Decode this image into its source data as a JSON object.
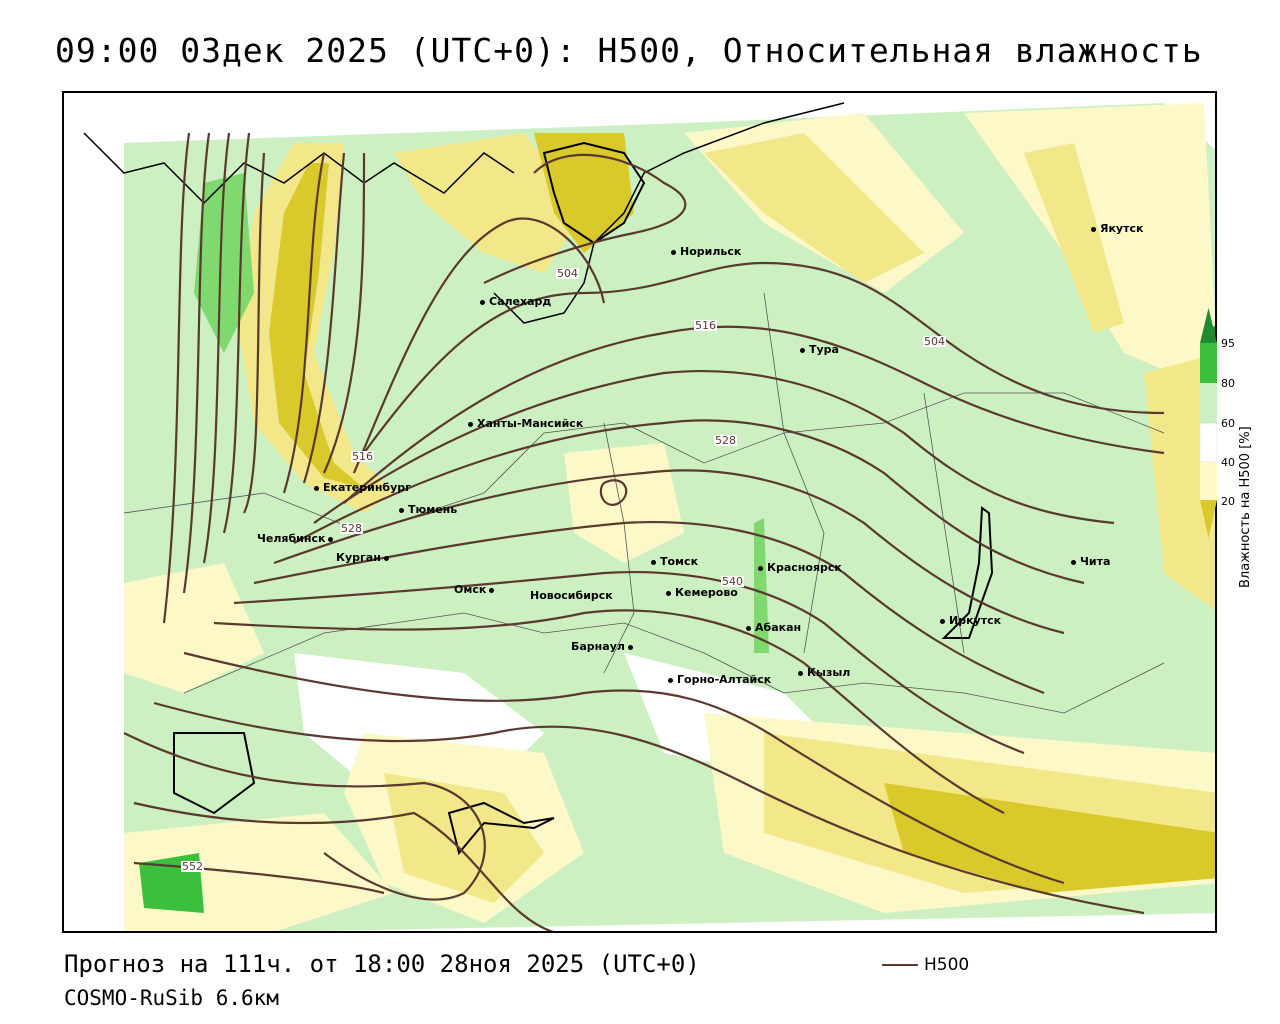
{
  "title": "09:00 03дек 2025 (UTC+0): H500, Относительная влажность",
  "footer": {
    "forecast": "Прогноз на 111ч. от 18:00 28ноя 2025 (UTC+0)",
    "model": "COSMO-RuSib 6.6км",
    "line_key_label": "H500"
  },
  "legend": {
    "title": "Влажность на H500 [%]",
    "ticks": [
      "95",
      "80",
      "60",
      "40",
      "20"
    ],
    "colors": {
      "very_dry": "#d9c92a",
      "dry": "#f2e88a",
      "light_dry": "#fdf8c8",
      "neutral": "#ffffff",
      "light_moist": "#cdf0c2",
      "moist": "#7fd96e",
      "very_moist": "#3cbf3c",
      "saturated": "#1f8a2e"
    },
    "contour_color": "#5a3a2e"
  },
  "cities": [
    {
      "name": "Норильск"
    },
    {
      "name": "Якутск"
    },
    {
      "name": "Салехард"
    },
    {
      "name": "Тура"
    },
    {
      "name": "Ханты-Мансийск"
    },
    {
      "name": "Екатеринбург"
    },
    {
      "name": "Тюмень"
    },
    {
      "name": "Челябинск"
    },
    {
      "name": "Курган"
    },
    {
      "name": "Омск"
    },
    {
      "name": "Новосибирск"
    },
    {
      "name": "Томск"
    },
    {
      "name": "Кемерово"
    },
    {
      "name": "Красноярск"
    },
    {
      "name": "Абакан"
    },
    {
      "name": "Барнаул"
    },
    {
      "name": "Горно-Алтайск"
    },
    {
      "name": "Кызыл"
    },
    {
      "name": "Иркутск"
    },
    {
      "name": "Чита"
    }
  ],
  "isoline_labels": [
    "504",
    "516",
    "504",
    "516",
    "528",
    "528",
    "540",
    "552"
  ]
}
